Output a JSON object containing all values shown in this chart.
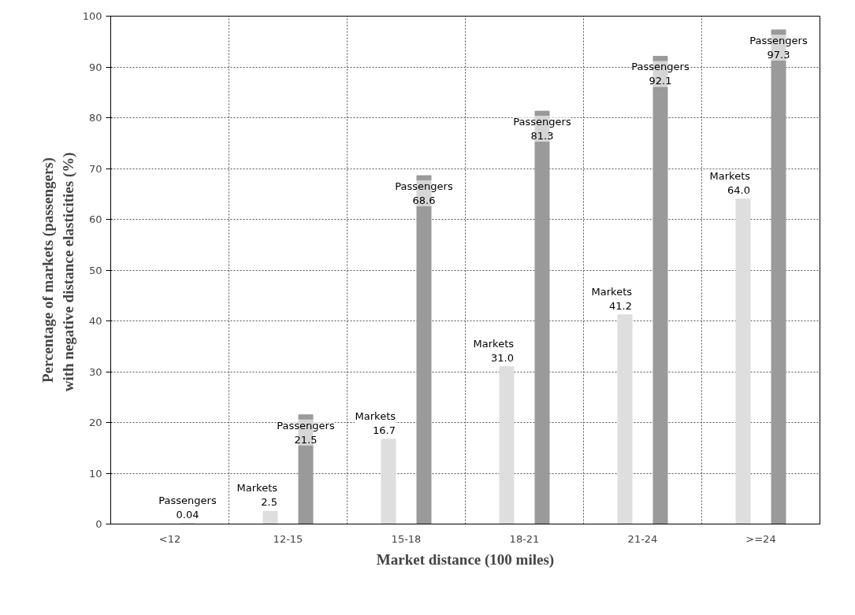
{
  "chart_data": {
    "type": "bar",
    "xlabel": "Market distance (100 miles)",
    "ylabel": "Percentage of markets (passengers)\nwith negative distance elasticities  (%)",
    "categories": [
      "<12",
      "12-15",
      "15-18",
      "18-21",
      "21-24",
      ">=24"
    ],
    "series": [
      {
        "name": "Markets",
        "color": "#dedede",
        "values": [
          null,
          2.5,
          16.7,
          31.0,
          41.2,
          64.0
        ],
        "value_labels": [
          null,
          "2.5",
          "16.7",
          "31.0",
          "41.2",
          "64.0"
        ]
      },
      {
        "name": "Passengers",
        "color": "#9a9a9a",
        "values": [
          0.04,
          21.5,
          68.6,
          81.3,
          92.1,
          97.3
        ],
        "value_labels": [
          "0.04",
          "21.5",
          "68.6",
          "81.3",
          "92.1",
          "97.3"
        ]
      }
    ],
    "ylim": [
      0,
      100
    ],
    "yticks": [
      0,
      10,
      20,
      30,
      40,
      50,
      60,
      70,
      80,
      90,
      100
    ],
    "grid": true
  }
}
